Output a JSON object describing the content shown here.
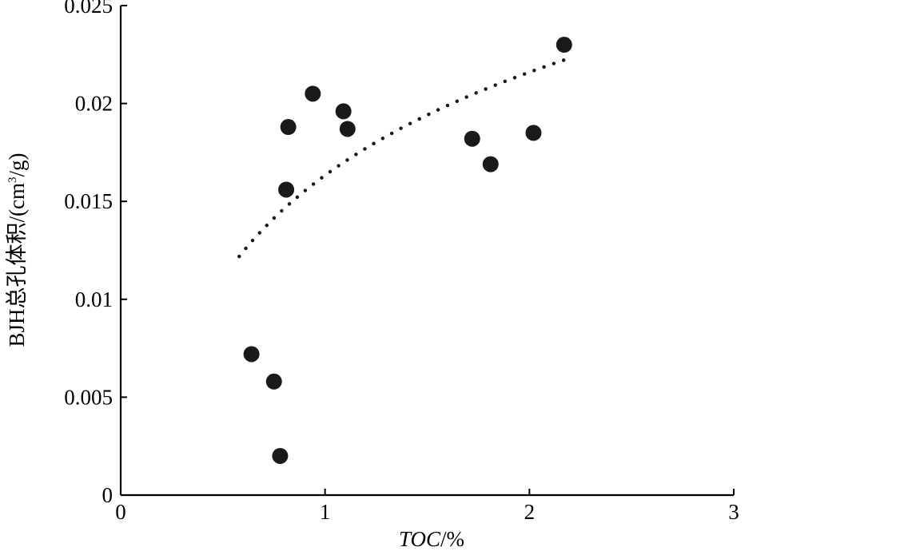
{
  "chart_data": {
    "type": "scatter",
    "title": "",
    "xlabel": {
      "italic": "TOC",
      "rest": "/%"
    },
    "ylabel": {
      "main": "BJH总孔体积/(cm",
      "sup": "3",
      "tail": "/g)"
    },
    "xlim": [
      0,
      3
    ],
    "ylim": [
      0,
      0.025
    ],
    "xticks": [
      0,
      1,
      2,
      3
    ],
    "xtick_labels": [
      "0",
      "1",
      "2",
      "3"
    ],
    "yticks": [
      0,
      0.005,
      0.01,
      0.015,
      0.02,
      0.025
    ],
    "ytick_labels": [
      "0",
      "0.005",
      "0.01",
      "0.015",
      "0.02",
      "0.025"
    ],
    "grid": false,
    "legend": "none",
    "point_color": "#1a1a1a",
    "points": [
      {
        "x": 0.64,
        "y": 0.0072
      },
      {
        "x": 0.75,
        "y": 0.0058
      },
      {
        "x": 0.78,
        "y": 0.002
      },
      {
        "x": 0.81,
        "y": 0.0156
      },
      {
        "x": 0.82,
        "y": 0.0188
      },
      {
        "x": 0.94,
        "y": 0.0205
      },
      {
        "x": 1.09,
        "y": 0.0196
      },
      {
        "x": 1.11,
        "y": 0.0187
      },
      {
        "x": 1.72,
        "y": 0.0182
      },
      {
        "x": 1.81,
        "y": 0.0169
      },
      {
        "x": 2.02,
        "y": 0.0185
      },
      {
        "x": 2.17,
        "y": 0.023
      }
    ],
    "trendline": {
      "style": "dotted",
      "type": "logarithmic",
      "a": 0.01633,
      "b": 0.0076,
      "x_range": [
        0.58,
        2.17
      ]
    }
  }
}
